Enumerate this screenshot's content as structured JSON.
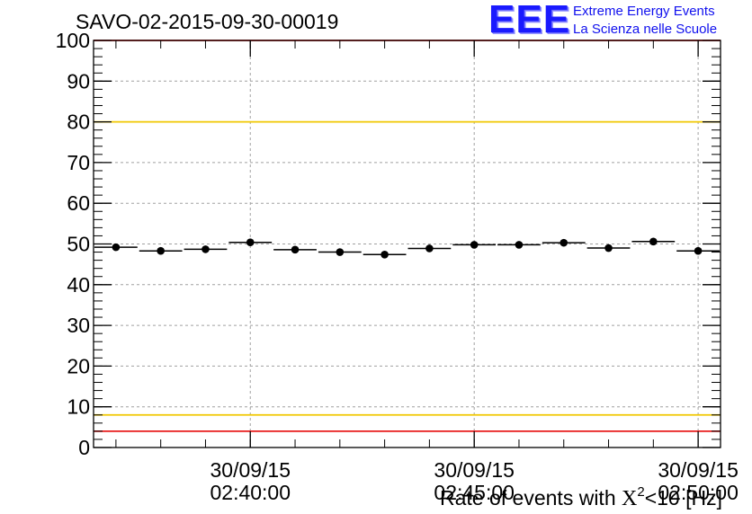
{
  "chart_data": {
    "type": "scatter",
    "title": "SAVO-02-2015-09-30-00019",
    "ylabel": "",
    "xlabel_prefix": "Rate of events with ",
    "xlabel_chi": "X",
    "xlabel_exp": "2",
    "xlabel_suffix": "<10 [Hz]",
    "ylim": [
      0,
      100
    ],
    "yticks": [
      "0",
      "10",
      "20",
      "30",
      "40",
      "50",
      "60",
      "70",
      "80",
      "90",
      "100"
    ],
    "xtick_labels": [
      {
        "date": "30/09/15",
        "time": "02:40:00"
      },
      {
        "date": "30/09/15",
        "time": "02:45:00"
      },
      {
        "date": "30/09/15",
        "time": "02:50:00"
      }
    ],
    "values": [
      49.2,
      48.3,
      48.7,
      50.4,
      48.6,
      48.0,
      47.4,
      48.9,
      49.8,
      49.8,
      50.3,
      49.0,
      50.6,
      48.3
    ],
    "reference_lines": [
      {
        "value": 100,
        "color": "#e81c1c"
      },
      {
        "value": 80,
        "color": "#f0c800"
      },
      {
        "value": 8,
        "color": "#f0c800"
      },
      {
        "value": 4,
        "color": "#e81c1c"
      }
    ],
    "marker_color": "#000000",
    "grid": true
  },
  "logo": {
    "mark": "EEE",
    "line1": "Extreme Energy Events",
    "line2": "La Scienza nelle Scuole",
    "color": "#1010ee"
  }
}
